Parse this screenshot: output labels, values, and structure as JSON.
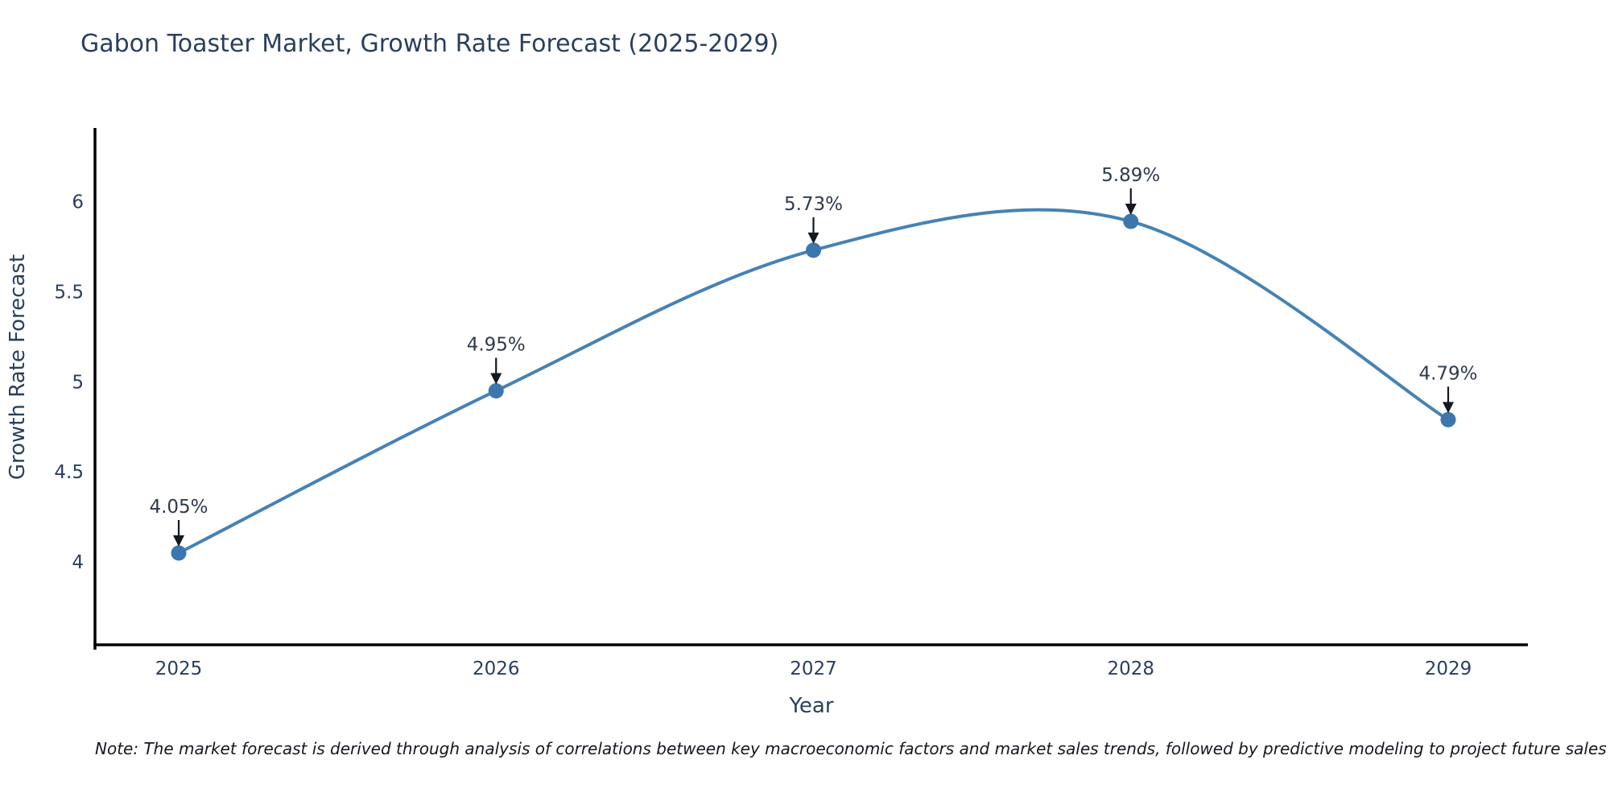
{
  "title": "Gabon Toaster Market, Growth Rate Forecast (2025-2029)",
  "note": "Note: The market forecast is derived through analysis of correlations between key macroeconomic factors and market sales trends, followed by predictive modeling to project future sales",
  "chart_data": {
    "type": "line",
    "line_shape": "spline",
    "title": "Gabon Toaster Market, Growth Rate Forecast (2025-2029)",
    "xlabel": "Year",
    "ylabel": "Growth Rate Forecast",
    "categories": [
      "2025",
      "2026",
      "2027",
      "2028",
      "2029"
    ],
    "values": [
      4.05,
      4.95,
      5.73,
      5.89,
      4.79
    ],
    "point_labels": [
      "4.05%",
      "4.95%",
      "5.73%",
      "5.89%",
      "4.79%"
    ],
    "yticks": [
      4,
      4.5,
      5,
      5.5,
      6
    ],
    "ylim": [
      3.55,
      6.4
    ],
    "grid": false,
    "legend": "none",
    "annotation_style": "label-with-down-arrow",
    "colors": {
      "line": "#4682b4",
      "marker": "#3d76ad",
      "axis": "#000000",
      "tick_text": "#2a3f5f",
      "annotation_text": "#2e3a4d",
      "arrow": "#14181f",
      "background": "#ffffff"
    }
  }
}
